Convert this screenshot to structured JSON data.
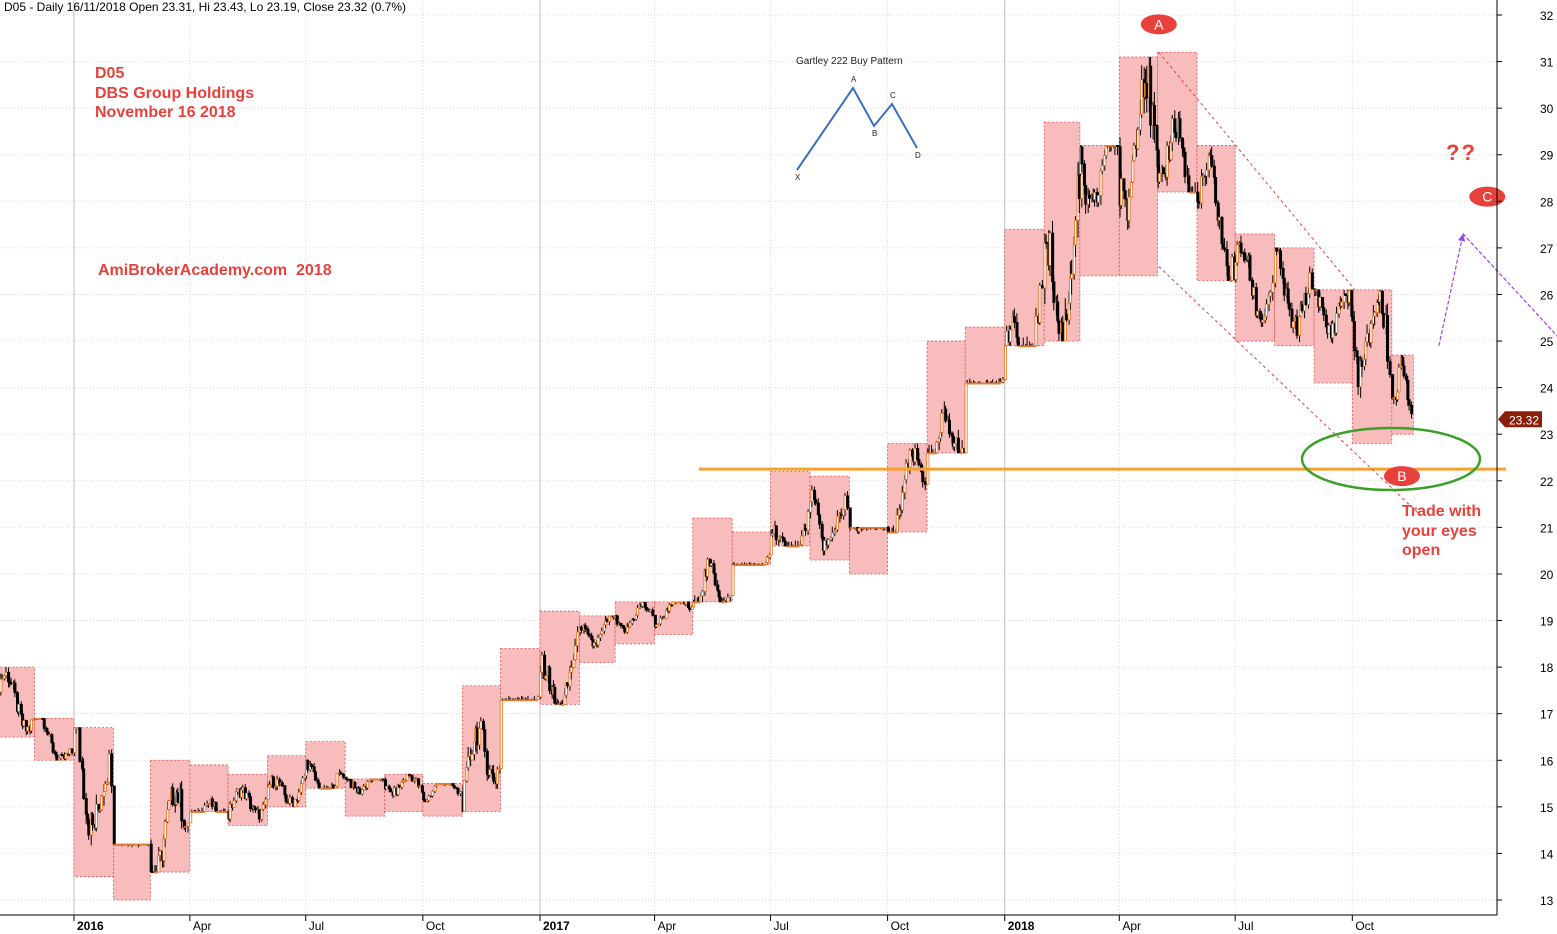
{
  "header": {
    "text": "D05 - Daily 16/11/2018 Open 23.31, Hi 23.43, Lo 23.19, Close 23.32 (0.7%)"
  },
  "annotations": {
    "title_lines": [
      "D05",
      "DBS Group Holdings",
      "November 16 2018"
    ],
    "site": "AmiBrokerAcademy.com  2018",
    "trade_lines": [
      "Trade with",
      "your eyes",
      "open"
    ],
    "question": "??",
    "labels": {
      "A": "A",
      "B": "B",
      "C": "C"
    },
    "accent_red": "#e8403a",
    "support_color": "#f5a030",
    "ellipse_color": "#3aa02a",
    "projection_color": "#a040f0"
  },
  "inset": {
    "title": "Gartley 222 Buy Pattern",
    "points": [
      "X",
      "A",
      "B",
      "C",
      "D"
    ]
  },
  "chart_data": {
    "type": "candlestick",
    "title": "",
    "last_price_label": "23.32",
    "ylim": [
      12.6,
      32.3
    ],
    "y_ticks": [
      13,
      14,
      15,
      16,
      17,
      18,
      19,
      20,
      21,
      22,
      23,
      24,
      25,
      26,
      27,
      28,
      29,
      30,
      31,
      32
    ],
    "x_ticks": [
      {
        "label": "2016",
        "date": "2016-01",
        "bold": true
      },
      {
        "label": "Apr",
        "date": "2016-04"
      },
      {
        "label": "Jul",
        "date": "2016-07"
      },
      {
        "label": "Oct",
        "date": "2016-10"
      },
      {
        "label": "2017",
        "date": "2017-01",
        "bold": true
      },
      {
        "label": "Apr",
        "date": "2017-04"
      },
      {
        "label": "Jul",
        "date": "2017-07"
      },
      {
        "label": "Oct",
        "date": "2017-10"
      },
      {
        "label": "2018",
        "date": "2018-01",
        "bold": true
      },
      {
        "label": "Apr",
        "date": "2018-04"
      },
      {
        "label": "Jul",
        "date": "2018-07"
      },
      {
        "label": "Oct",
        "date": "2018-10"
      }
    ],
    "grid": true,
    "monthly_range_boxes": [
      {
        "month": "2015-11",
        "high": 18.0,
        "low": 16.5
      },
      {
        "month": "2015-12",
        "high": 16.9,
        "low": 16.0
      },
      {
        "month": "2016-01",
        "high": 16.7,
        "low": 13.5
      },
      {
        "month": "2016-02",
        "high": 14.2,
        "low": 13.0
      },
      {
        "month": "2016-03",
        "high": 16.0,
        "low": 13.6
      },
      {
        "month": "2016-04",
        "high": 15.9,
        "low": 14.9
      },
      {
        "month": "2016-05",
        "high": 15.7,
        "low": 14.6
      },
      {
        "month": "2016-06",
        "high": 16.1,
        "low": 15.0
      },
      {
        "month": "2016-07",
        "high": 16.4,
        "low": 15.4
      },
      {
        "month": "2016-08",
        "high": 15.6,
        "low": 14.8
      },
      {
        "month": "2016-09",
        "high": 15.7,
        "low": 14.9
      },
      {
        "month": "2016-10",
        "high": 15.5,
        "low": 14.8
      },
      {
        "month": "2016-11",
        "high": 17.6,
        "low": 14.9
      },
      {
        "month": "2016-12",
        "high": 18.4,
        "low": 17.3
      },
      {
        "month": "2017-01",
        "high": 19.2,
        "low": 17.2
      },
      {
        "month": "2017-02",
        "high": 19.1,
        "low": 18.1
      },
      {
        "month": "2017-03",
        "high": 19.4,
        "low": 18.5
      },
      {
        "month": "2017-04",
        "high": 19.4,
        "low": 18.7
      },
      {
        "month": "2017-05",
        "high": 21.2,
        "low": 19.4
      },
      {
        "month": "2017-06",
        "high": 20.9,
        "low": 20.2
      },
      {
        "month": "2017-07",
        "high": 22.2,
        "low": 20.6
      },
      {
        "month": "2017-08",
        "high": 22.1,
        "low": 20.3
      },
      {
        "month": "2017-09",
        "high": 21.0,
        "low": 20.0
      },
      {
        "month": "2017-10",
        "high": 22.8,
        "low": 20.9
      },
      {
        "month": "2017-11",
        "high": 25.0,
        "low": 22.6
      },
      {
        "month": "2017-12",
        "high": 25.3,
        "low": 24.1
      },
      {
        "month": "2018-01",
        "high": 27.4,
        "low": 24.9
      },
      {
        "month": "2018-02",
        "high": 29.7,
        "low": 25.0
      },
      {
        "month": "2018-03",
        "high": 29.2,
        "low": 26.4
      },
      {
        "month": "2018-04",
        "high": 31.1,
        "low": 26.4
      },
      {
        "month": "2018-05",
        "high": 31.2,
        "low": 28.2
      },
      {
        "month": "2018-06",
        "high": 29.2,
        "low": 26.3
      },
      {
        "month": "2018-07",
        "high": 27.3,
        "low": 25.0
      },
      {
        "month": "2018-08",
        "high": 27.0,
        "low": 24.9
      },
      {
        "month": "2018-09",
        "high": 26.1,
        "low": 24.1
      },
      {
        "month": "2018-10",
        "high": 26.1,
        "low": 22.8
      },
      {
        "month": "2018-11",
        "high": 24.7,
        "low": 23.0
      }
    ],
    "support_level": 22.25,
    "pivots": [
      {
        "label": "A",
        "date": "2018-05-02",
        "value": 31.8
      },
      {
        "label": "B",
        "date": "2018-11-09",
        "value": 22.1
      },
      {
        "label": "C",
        "date": "2019-01-15",
        "value": 28.1
      }
    ],
    "projection": [
      {
        "date": "2018-12-08",
        "value": 24.9
      },
      {
        "date": "2018-12-27",
        "value": 27.3
      },
      {
        "date": "2019-03-18",
        "value": 24.9
      }
    ],
    "channel_upper": [
      {
        "date": "2018-05-02",
        "value": 31.2
      },
      {
        "date": "2018-10-03",
        "value": 26.1
      }
    ],
    "channel_lower": [
      {
        "date": "2018-05-02",
        "value": 26.6
      },
      {
        "date": "2018-11-22",
        "value": 21.3
      }
    ]
  }
}
